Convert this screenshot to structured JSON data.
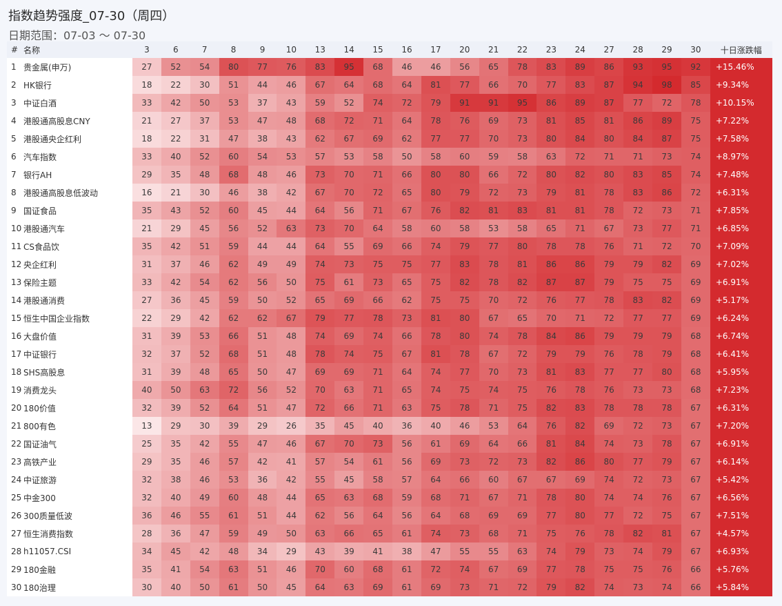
{
  "header": {
    "title": "指数趋势强度_07-30（周四）",
    "subtitle": "日期范围：07-03 ～ 07-30"
  },
  "chart_data": {
    "type": "heatmap",
    "title": "指数趋势强度_07-30（周四）",
    "subtitle": "日期范围：07-03 ～ 07-30",
    "columns": {
      "index_label": "#",
      "name_label": "名称",
      "change_label": "十日涨跌幅"
    },
    "x": [
      "3",
      "6",
      "7",
      "8",
      "9",
      "10",
      "13",
      "14",
      "15",
      "16",
      "17",
      "20",
      "21",
      "22",
      "23",
      "24",
      "27",
      "28",
      "29",
      "30"
    ],
    "color_scale": {
      "low": "#fbe6e7",
      "high": "#d42a2e",
      "min": 13,
      "max": 98
    },
    "change_color": "#d42a2e",
    "rows": [
      {
        "rank": "1",
        "name": "贵金属(申万)",
        "values": [
          27,
          52,
          54,
          80,
          77,
          76,
          83,
          95,
          68,
          46,
          46,
          56,
          65,
          78,
          83,
          89,
          86,
          93,
          95,
          92
        ],
        "change": "+15.46%"
      },
      {
        "rank": "2",
        "name": "HK银行",
        "values": [
          18,
          22,
          30,
          51,
          44,
          46,
          67,
          64,
          68,
          64,
          81,
          77,
          66,
          70,
          77,
          83,
          87,
          94,
          98,
          85
        ],
        "change": "+9.34%"
      },
      {
        "rank": "3",
        "name": "中证白酒",
        "values": [
          33,
          42,
          50,
          53,
          37,
          43,
          59,
          52,
          74,
          72,
          79,
          91,
          91,
          95,
          86,
          89,
          87,
          77,
          72,
          78
        ],
        "change": "+10.15%"
      },
      {
        "rank": "4",
        "name": "港股通高股息CNY",
        "values": [
          21,
          27,
          37,
          53,
          47,
          48,
          68,
          72,
          71,
          64,
          78,
          76,
          69,
          73,
          81,
          85,
          81,
          86,
          89,
          75
        ],
        "change": "+7.22%"
      },
      {
        "rank": "5",
        "name": "港股通央企红利",
        "values": [
          18,
          22,
          31,
          47,
          38,
          43,
          62,
          67,
          69,
          62,
          77,
          77,
          70,
          73,
          80,
          84,
          80,
          84,
          87,
          75
        ],
        "change": "+7.58%"
      },
      {
        "rank": "6",
        "name": "汽车指数",
        "values": [
          33,
          40,
          52,
          60,
          54,
          53,
          57,
          53,
          58,
          50,
          58,
          60,
          59,
          58,
          63,
          72,
          71,
          71,
          73,
          74
        ],
        "change": "+8.97%"
      },
      {
        "rank": "7",
        "name": "银行AH",
        "values": [
          29,
          35,
          48,
          68,
          48,
          46,
          73,
          70,
          71,
          66,
          80,
          80,
          66,
          72,
          80,
          82,
          80,
          83,
          85,
          74
        ],
        "change": "+7.48%"
      },
      {
        "rank": "8",
        "name": "港股通高股息低波动",
        "values": [
          16,
          21,
          30,
          46,
          38,
          42,
          67,
          70,
          72,
          65,
          80,
          79,
          72,
          73,
          79,
          81,
          78,
          83,
          86,
          72
        ],
        "change": "+6.31%"
      },
      {
        "rank": "9",
        "name": "国证食品",
        "values": [
          35,
          43,
          52,
          60,
          45,
          44,
          64,
          56,
          71,
          67,
          76,
          82,
          81,
          83,
          81,
          81,
          78,
          72,
          73,
          71
        ],
        "change": "+7.85%"
      },
      {
        "rank": "10",
        "name": "港股通汽车",
        "values": [
          21,
          29,
          45,
          56,
          52,
          63,
          73,
          70,
          64,
          58,
          60,
          58,
          53,
          58,
          65,
          71,
          67,
          73,
          77,
          71
        ],
        "change": "+6.85%"
      },
      {
        "rank": "11",
        "name": "CS食品饮",
        "values": [
          35,
          42,
          51,
          59,
          44,
          44,
          64,
          55,
          69,
          66,
          74,
          79,
          77,
          80,
          78,
          78,
          76,
          71,
          72,
          70
        ],
        "change": "+7.09%"
      },
      {
        "rank": "12",
        "name": "央企红利",
        "values": [
          31,
          37,
          46,
          62,
          49,
          49,
          74,
          73,
          75,
          75,
          77,
          83,
          78,
          81,
          86,
          86,
          79,
          79,
          82,
          69
        ],
        "change": "+7.02%"
      },
      {
        "rank": "13",
        "name": "保险主题",
        "values": [
          33,
          42,
          54,
          62,
          56,
          50,
          75,
          61,
          73,
          65,
          75,
          82,
          78,
          82,
          87,
          87,
          79,
          75,
          75,
          69
        ],
        "change": "+6.91%"
      },
      {
        "rank": "14",
        "name": "港股通消费",
        "values": [
          27,
          36,
          45,
          59,
          50,
          52,
          65,
          69,
          66,
          62,
          75,
          75,
          70,
          72,
          76,
          77,
          78,
          83,
          82,
          69
        ],
        "change": "+5.17%"
      },
      {
        "rank": "15",
        "name": "恒生中国企业指数",
        "values": [
          22,
          29,
          42,
          62,
          62,
          67,
          79,
          77,
          78,
          73,
          81,
          80,
          67,
          65,
          70,
          71,
          72,
          77,
          77,
          69
        ],
        "change": "+6.24%"
      },
      {
        "rank": "16",
        "name": "大盘价值",
        "values": [
          31,
          39,
          53,
          66,
          51,
          48,
          74,
          69,
          74,
          66,
          78,
          80,
          74,
          78,
          84,
          86,
          79,
          79,
          79,
          68
        ],
        "change": "+6.74%"
      },
      {
        "rank": "17",
        "name": "中证银行",
        "values": [
          32,
          37,
          52,
          68,
          51,
          48,
          78,
          74,
          75,
          67,
          81,
          78,
          67,
          72,
          79,
          79,
          76,
          78,
          79,
          68
        ],
        "change": "+6.41%"
      },
      {
        "rank": "18",
        "name": "SHS高股息",
        "values": [
          31,
          39,
          48,
          65,
          50,
          47,
          69,
          69,
          71,
          64,
          74,
          77,
          70,
          73,
          81,
          83,
          77,
          77,
          80,
          68
        ],
        "change": "+5.95%"
      },
      {
        "rank": "19",
        "name": "消费龙头",
        "values": [
          40,
          50,
          63,
          72,
          56,
          52,
          70,
          63,
          71,
          65,
          74,
          75,
          74,
          75,
          76,
          78,
          76,
          73,
          73,
          68
        ],
        "change": "+7.23%"
      },
      {
        "rank": "20",
        "name": "180价值",
        "values": [
          32,
          39,
          52,
          64,
          51,
          47,
          72,
          66,
          71,
          63,
          75,
          78,
          71,
          75,
          82,
          83,
          78,
          78,
          78,
          67
        ],
        "change": "+6.31%"
      },
      {
        "rank": "21",
        "name": "800有色",
        "values": [
          13,
          29,
          30,
          39,
          29,
          26,
          35,
          45,
          40,
          36,
          40,
          46,
          53,
          64,
          76,
          82,
          69,
          72,
          73,
          67
        ],
        "change": "+7.20%"
      },
      {
        "rank": "22",
        "name": "国证油气",
        "values": [
          25,
          35,
          42,
          55,
          47,
          46,
          67,
          70,
          73,
          56,
          61,
          69,
          64,
          66,
          81,
          84,
          74,
          73,
          78,
          67
        ],
        "change": "+6.91%"
      },
      {
        "rank": "23",
        "name": "高铁产业",
        "values": [
          29,
          35,
          46,
          57,
          42,
          41,
          57,
          54,
          61,
          56,
          69,
          73,
          72,
          73,
          82,
          86,
          80,
          77,
          79,
          67
        ],
        "change": "+6.14%"
      },
      {
        "rank": "24",
        "name": "中证旅游",
        "values": [
          32,
          38,
          46,
          53,
          36,
          42,
          55,
          45,
          58,
          57,
          64,
          66,
          60,
          67,
          67,
          69,
          74,
          72,
          73,
          67
        ],
        "change": "+5.42%"
      },
      {
        "rank": "25",
        "name": "中金300",
        "values": [
          32,
          40,
          49,
          60,
          48,
          44,
          65,
          63,
          68,
          59,
          68,
          71,
          67,
          71,
          78,
          80,
          74,
          74,
          76,
          67
        ],
        "change": "+6.56%"
      },
      {
        "rank": "26",
        "name": "300质量低波",
        "values": [
          36,
          46,
          55,
          61,
          51,
          44,
          62,
          56,
          64,
          56,
          64,
          68,
          69,
          69,
          77,
          80,
          77,
          72,
          75,
          67
        ],
        "change": "+7.51%"
      },
      {
        "rank": "27",
        "name": "恒生消费指数",
        "values": [
          28,
          36,
          47,
          59,
          49,
          50,
          63,
          66,
          65,
          61,
          74,
          73,
          68,
          71,
          75,
          76,
          78,
          82,
          81,
          67
        ],
        "change": "+4.57%"
      },
      {
        "rank": "28",
        "name": "h11057.CSI",
        "values": [
          34,
          45,
          42,
          48,
          34,
          29,
          43,
          39,
          41,
          38,
          47,
          55,
          55,
          63,
          74,
          79,
          73,
          74,
          79,
          67
        ],
        "change": "+6.93%"
      },
      {
        "rank": "29",
        "name": "180金融",
        "values": [
          35,
          41,
          54,
          63,
          51,
          46,
          70,
          60,
          68,
          61,
          72,
          74,
          67,
          69,
          77,
          78,
          75,
          75,
          76,
          66
        ],
        "change": "+5.76%"
      },
      {
        "rank": "30",
        "name": "180治理",
        "values": [
          30,
          40,
          50,
          61,
          50,
          45,
          64,
          63,
          69,
          61,
          69,
          73,
          71,
          72,
          79,
          82,
          74,
          73,
          74,
          66
        ],
        "change": "+5.84%"
      }
    ]
  }
}
